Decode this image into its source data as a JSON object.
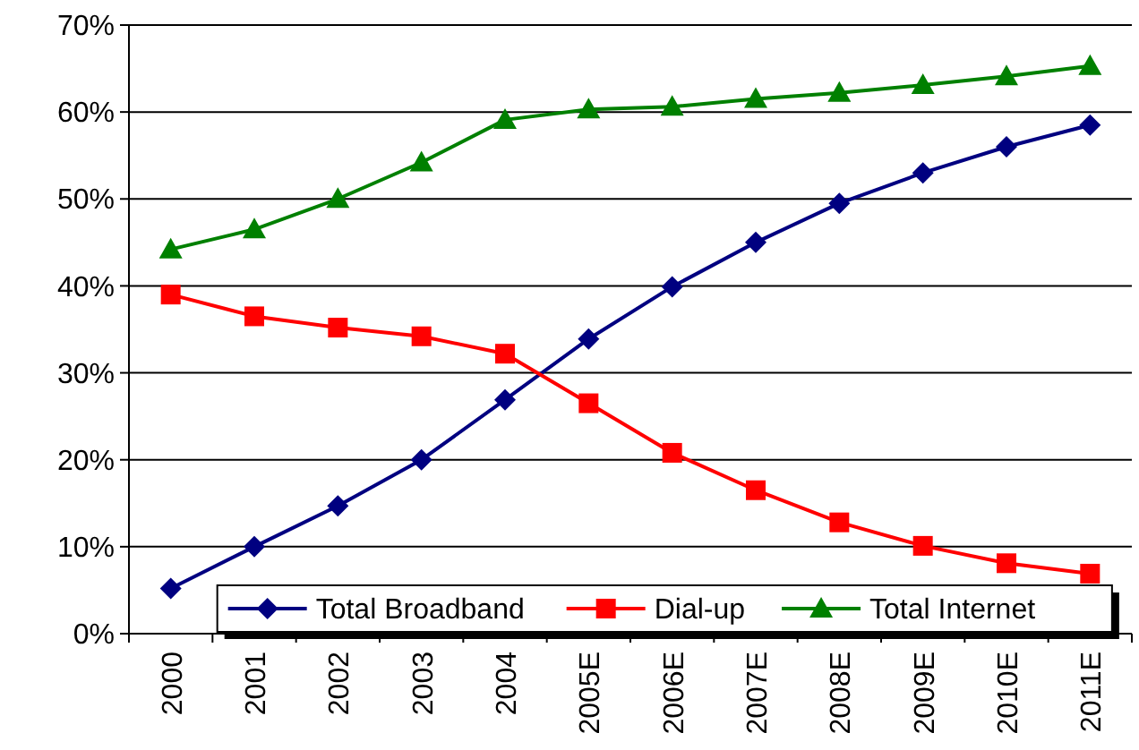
{
  "chart_data": {
    "type": "line",
    "categories": [
      "2000",
      "2001",
      "2002",
      "2003",
      "2004",
      "2005E",
      "2006E",
      "2007E",
      "2008E",
      "2009E",
      "2010E",
      "2011E"
    ],
    "series": [
      {
        "name": "Total Broadband",
        "color": "#000080",
        "marker": "diamond",
        "values": [
          5.2,
          10,
          14.7,
          20,
          26.9,
          33.9,
          39.9,
          45,
          49.5,
          53,
          56,
          58.5
        ]
      },
      {
        "name": "Dial-up",
        "color": "#ff0000",
        "marker": "square",
        "values": [
          39,
          36.5,
          35.2,
          34.2,
          32.2,
          26.5,
          20.8,
          16.5,
          12.8,
          10.1,
          8.1,
          6.9
        ]
      },
      {
        "name": "Total Internet",
        "color": "#008000",
        "marker": "triangle",
        "values": [
          44.2,
          46.5,
          50,
          54.2,
          59.1,
          60.3,
          60.6,
          61.5,
          62.2,
          63.1,
          64.1,
          65.3
        ]
      }
    ],
    "ylim": [
      0,
      70
    ],
    "yticks": [
      {
        "value": 0,
        "label": "0%"
      },
      {
        "value": 10,
        "label": "10%"
      },
      {
        "value": 20,
        "label": "20%"
      },
      {
        "value": 30,
        "label": "30%"
      },
      {
        "value": 40,
        "label": "40%"
      },
      {
        "value": 50,
        "label": "50%"
      },
      {
        "value": 60,
        "label": "60%"
      },
      {
        "value": 70,
        "label": "70%"
      }
    ],
    "grid": "y",
    "legend": "bottom"
  }
}
